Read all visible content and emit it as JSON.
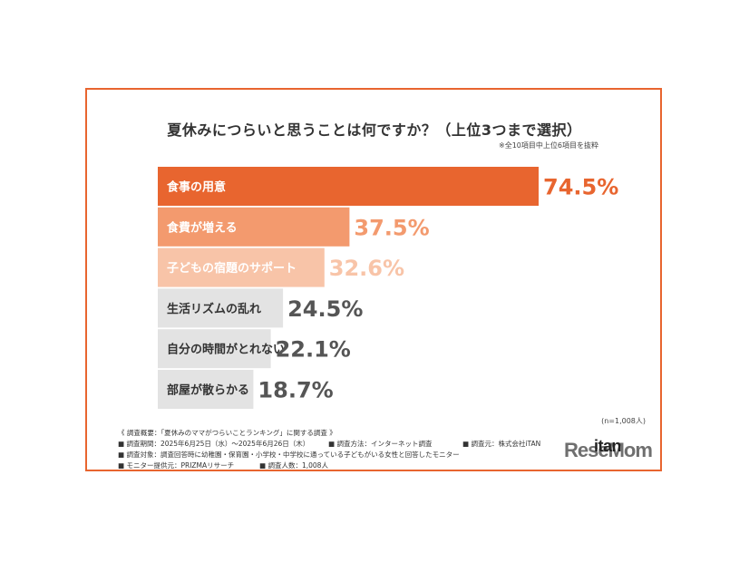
{
  "title": "夏休みにつらいと思うことは何ですか？（上位3つまで選択）",
  "subnote": "※全10項目中上位6項目を抜粋",
  "n_note": "(n=1,008人)",
  "survey": {
    "heading": "《 調査概要：「夏休みのママがつらいことランキング」に関する調査 》",
    "period": "■ 調査期間：2025年6月25日（水）～2025年6月26日（木）",
    "method": "■ 調査方法：インターネット調査",
    "source": "■ 調査元：株式会社iTAN",
    "target": "■ 調査対象：調査回答時に幼稚園・保育園・小学校・中学校に通っている子どもがいる女性と回答したモニター",
    "provider": "■ モニター提供元：PRIZMAリサーチ",
    "count": "■ 調査人数：1,008人"
  },
  "watermark": "ReseMom",
  "logo": "itan",
  "colors": {
    "frame": "#e8652f",
    "bar1": "#e8652f",
    "bar2": "#f39a6e",
    "bar3": "#f8c4a8",
    "bar_gray": "#e3e3e3",
    "value_gray": "#555555"
  },
  "chart_data": {
    "type": "bar",
    "orientation": "horizontal",
    "categories": [
      "食事の用意",
      "食費が増える",
      "子どもの宿題のサポート",
      "生活リズムの乱れ",
      "自分の時間がとれない",
      "部屋が散らかる"
    ],
    "values": [
      74.5,
      37.5,
      32.6,
      24.5,
      22.1,
      18.7
    ],
    "value_labels": [
      "74.5%",
      "37.5%",
      "32.6%",
      "24.5%",
      "22.1%",
      "18.7%"
    ],
    "unit": "%",
    "xlim": [
      0,
      100
    ],
    "grid": false,
    "legend": "none"
  }
}
